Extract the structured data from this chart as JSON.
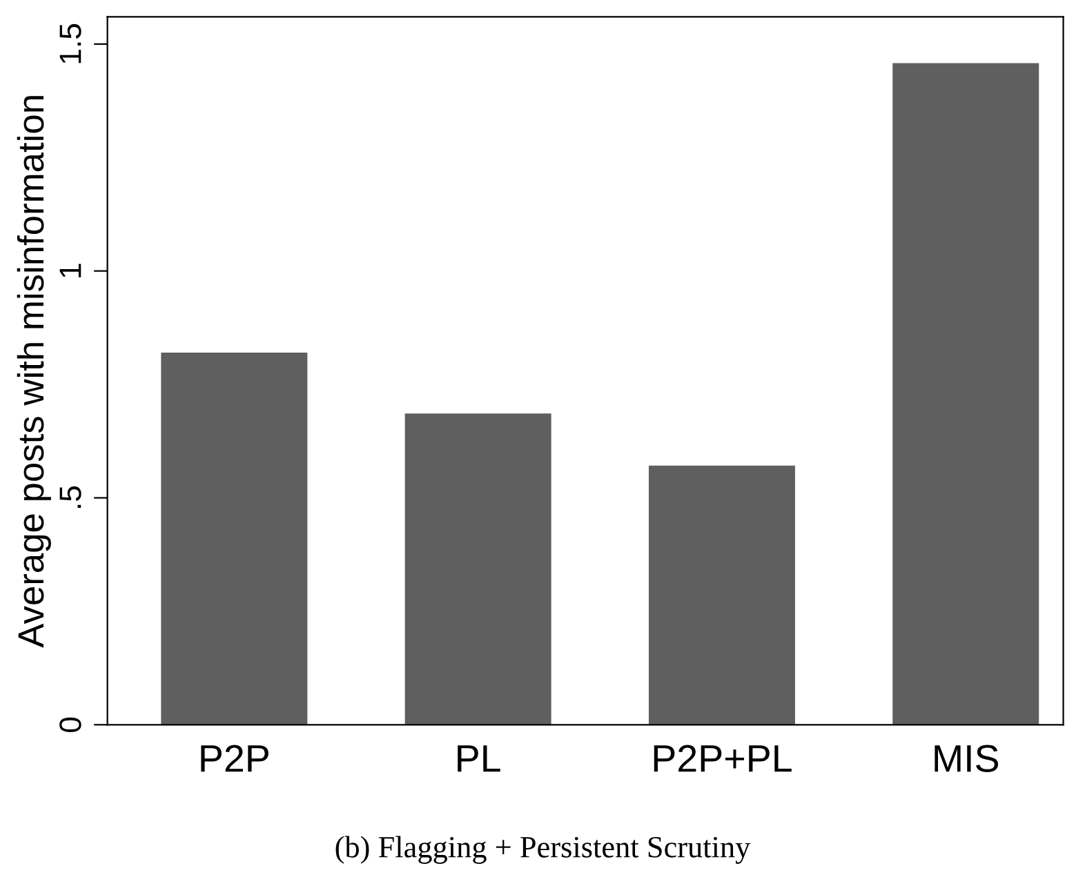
{
  "chart_data": {
    "type": "bar",
    "categories": [
      "P2P",
      "PL",
      "P2P+PL",
      "MIS"
    ],
    "values": [
      0.82,
      0.686,
      0.571,
      1.458
    ],
    "color": "#5f5f5f",
    "ylabel": "Average posts with misinformation",
    "ylim": [
      0,
      1.56
    ],
    "yticks": [
      0,
      {
        "value": 0.5,
        "label": ".5"
      },
      1,
      1.5
    ],
    "grid": false,
    "legend": false,
    "annotations": [
      "(b) Flagging + Persistent Scrutiny"
    ]
  }
}
